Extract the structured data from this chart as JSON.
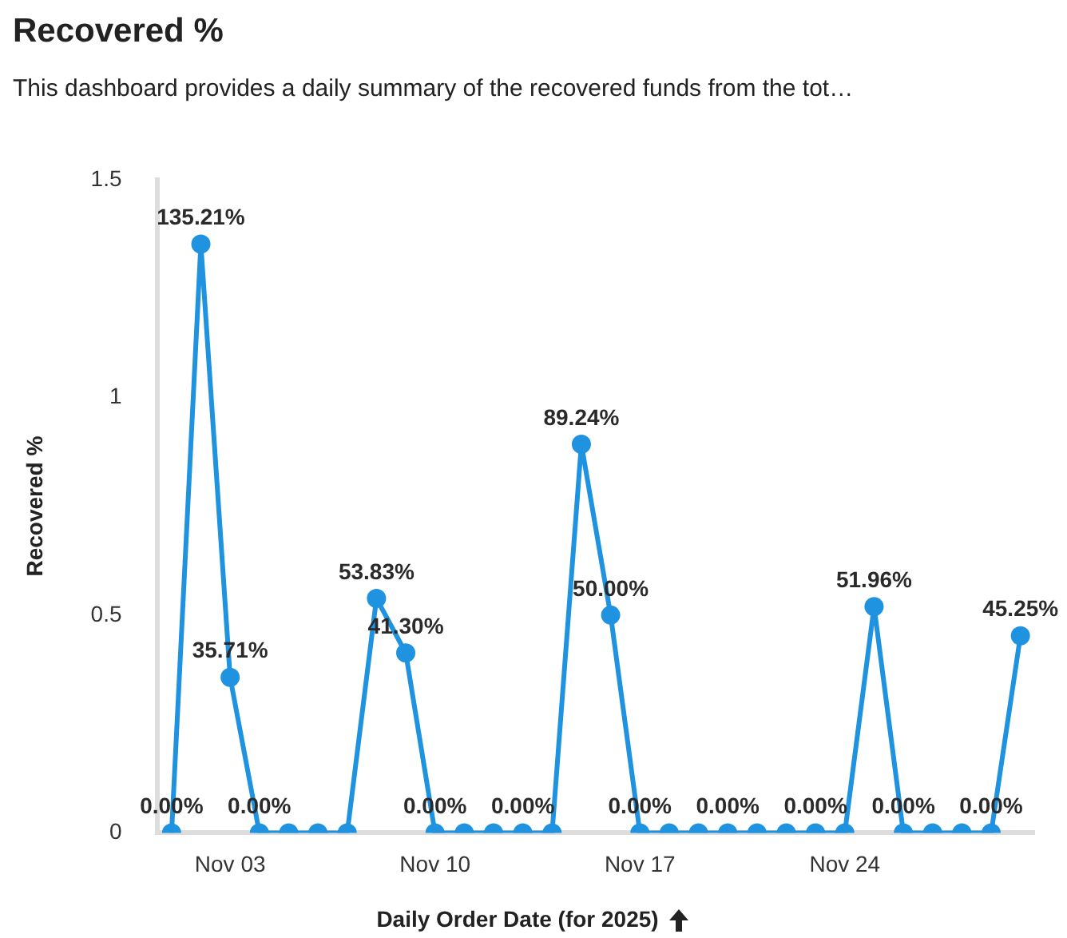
{
  "chart_data": {
    "type": "line",
    "title": "Recovered %",
    "subtitle": "This dashboard provides a daily summary of the recovered funds from the tot…",
    "xlabel": "Daily Order Date (for 2025)",
    "ylabel": "Recovered %",
    "categories": [
      null,
      null,
      "Nov 03",
      null,
      null,
      null,
      null,
      null,
      null,
      "Nov 10",
      null,
      null,
      null,
      null,
      null,
      null,
      "Nov 17",
      null,
      null,
      null,
      null,
      null,
      null,
      "Nov 24",
      null,
      null,
      null,
      null,
      null,
      null
    ],
    "series": [
      {
        "color": "#1f93e0",
        "values": [
          0,
          1.3521,
          0.3571,
          0,
          0,
          0,
          0,
          0.5383,
          0.413,
          0,
          0,
          0,
          0,
          0,
          0.8924,
          0.5,
          0,
          0,
          0,
          0,
          0,
          0,
          0,
          0,
          0.5196,
          0,
          0,
          0,
          0,
          0.4525
        ],
        "value_labels": [
          "0.00%",
          "135.21%",
          "35.71%",
          "0.00%",
          null,
          null,
          null,
          "53.83%",
          "41.30%",
          "0.00%",
          null,
          null,
          "0.00%",
          null,
          "89.24%",
          "50.00%",
          "0.00%",
          null,
          null,
          "0.00%",
          null,
          null,
          "0.00%",
          null,
          "51.96%",
          "0.00%",
          null,
          null,
          "0.00%",
          "45.25%"
        ]
      }
    ],
    "ylim": [
      0,
      1.5
    ],
    "yticks": [
      0,
      0.5,
      1,
      1.5
    ],
    "grid": false,
    "legend": false,
    "marker": "circle",
    "line_style": "solid"
  }
}
